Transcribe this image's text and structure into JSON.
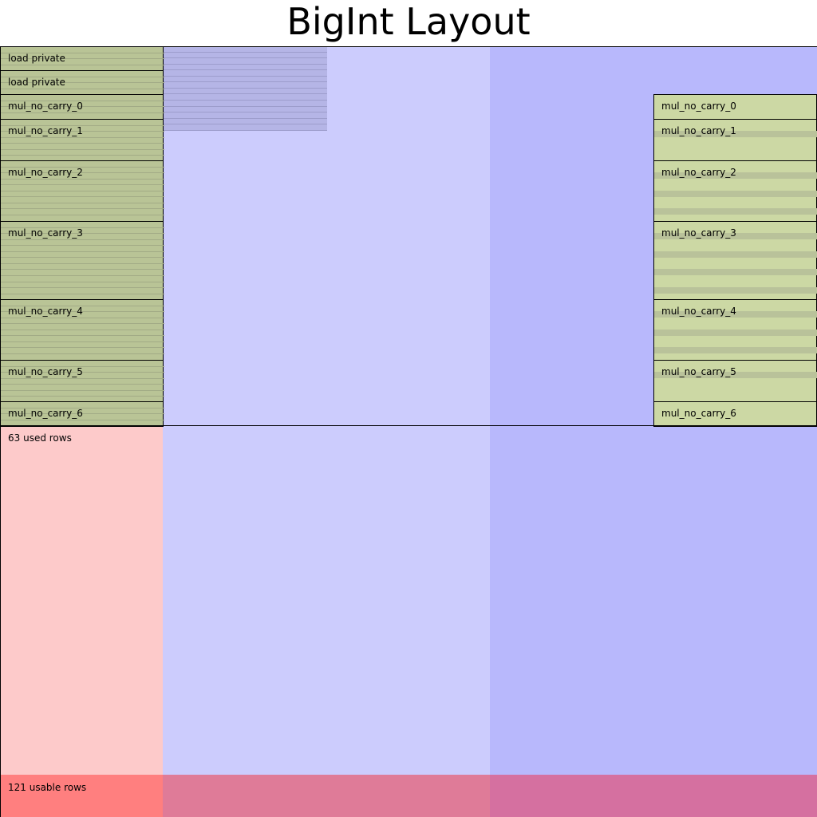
{
  "title": "BigInt Layout",
  "colors": {
    "advice_column": "#fdcaca",
    "fixed_column": "#ccccfd",
    "selector_column": "#b8b8fc",
    "region_fill": "#b9c496",
    "region_fill_light": "#ccd8a4",
    "region_stripe": "#b9c29a",
    "row_line": "#a2ab86",
    "fixed_shading": "#b5b5e6",
    "fixed_shading_line": "#9d9dcc",
    "unused_advice": "#ff7f7f",
    "unused_fixed": "#df7b98",
    "unused_selector": "#d570a0"
  },
  "total_rows": 121,
  "used_rows_count": 63,
  "regions": [
    {
      "name": "load private",
      "start": 0,
      "rows": 4
    },
    {
      "name": "load private",
      "start": 4,
      "rows": 4
    },
    {
      "name": "mul_no_carry_0",
      "start": 8,
      "rows": 4
    },
    {
      "name": "mul_no_carry_1",
      "start": 12,
      "rows": 7
    },
    {
      "name": "mul_no_carry_2",
      "start": 19,
      "rows": 10
    },
    {
      "name": "mul_no_carry_3",
      "start": 29,
      "rows": 13
    },
    {
      "name": "mul_no_carry_4",
      "start": 42,
      "rows": 10
    },
    {
      "name": "mul_no_carry_5",
      "start": 52,
      "rows": 7
    },
    {
      "name": "mul_no_carry_6",
      "start": 59,
      "rows": 4
    }
  ],
  "selector_regions": [
    {
      "name": "mul_no_carry_0",
      "start": 8,
      "rows": 4,
      "enabled": []
    },
    {
      "name": "mul_no_carry_1",
      "start": 12,
      "rows": 7,
      "enabled": [
        2
      ]
    },
    {
      "name": "mul_no_carry_2",
      "start": 19,
      "rows": 10,
      "enabled": [
        2,
        5,
        8
      ]
    },
    {
      "name": "mul_no_carry_3",
      "start": 29,
      "rows": 13,
      "enabled": [
        2,
        5,
        8,
        11
      ]
    },
    {
      "name": "mul_no_carry_4",
      "start": 42,
      "rows": 10,
      "enabled": [
        2,
        5,
        8
      ]
    },
    {
      "name": "mul_no_carry_5",
      "start": 52,
      "rows": 7,
      "enabled": [
        2
      ]
    },
    {
      "name": "mul_no_carry_6",
      "start": 59,
      "rows": 4,
      "enabled": []
    }
  ],
  "fixed_assigned_rows": 14,
  "used_rows_label": "63 used rows",
  "usable_rows_label": "121 usable rows"
}
